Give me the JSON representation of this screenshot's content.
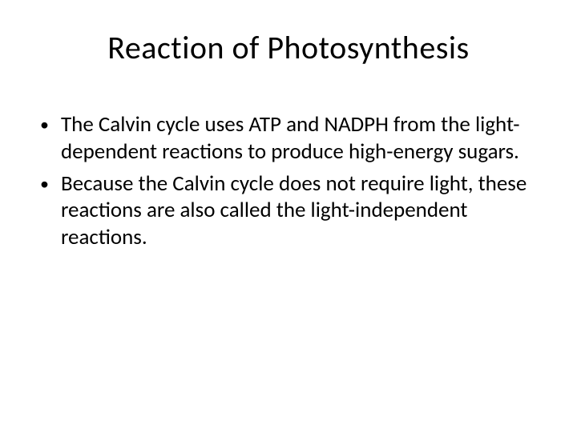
{
  "slide": {
    "title": "Reaction of Photosynthesis",
    "bullets": [
      "The Calvin cycle uses ATP and NADPH from the light-dependent reactions to produce high-energy sugars.",
      "Because the Calvin cycle does not require light, these reactions are also called the light-independent reactions."
    ]
  },
  "styling": {
    "background_color": "#ffffff",
    "text_color": "#000000",
    "title_fontsize": 40,
    "body_fontsize": 27,
    "font_family": "Calibri",
    "bullet_char": "•"
  }
}
